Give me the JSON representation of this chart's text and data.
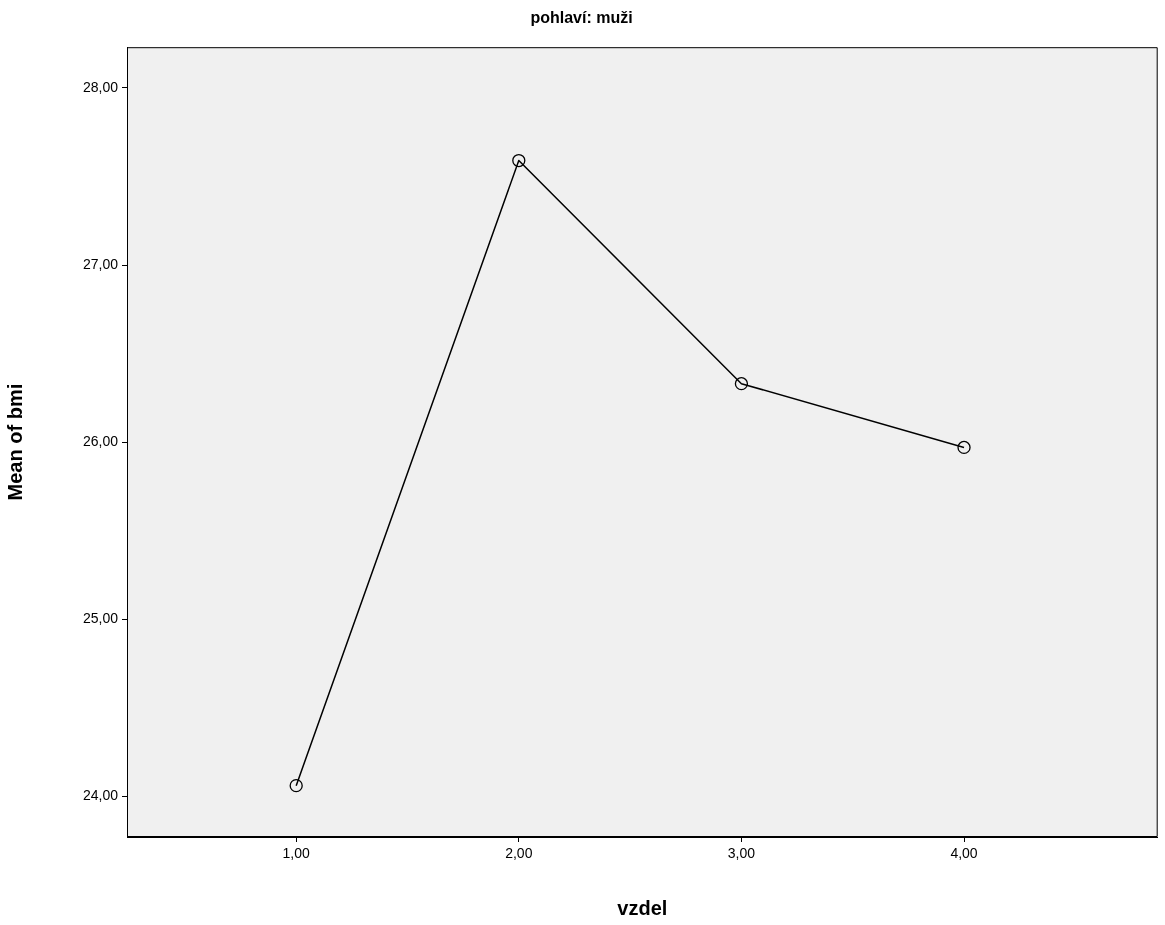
{
  "chart_data": {
    "type": "line",
    "title": "pohlaví: muži",
    "xlabel": "vzdel",
    "ylabel": "Mean of bmi",
    "x": [
      1,
      2,
      3,
      4
    ],
    "series": [
      {
        "color": "#000000",
        "values": [
          24.06,
          27.59,
          26.33,
          25.97
        ]
      }
    ],
    "xlim": [
      0.24,
      4.87
    ],
    "xticks": [
      {
        "value": 1,
        "label": "1,00"
      },
      {
        "value": 2,
        "label": "2,00"
      },
      {
        "value": 3,
        "label": "3,00"
      },
      {
        "value": 4,
        "label": "4,00"
      }
    ],
    "ylim": [
      23.77,
      28.23
    ],
    "yticks": [
      {
        "value": 24,
        "label": "24,00"
      },
      {
        "value": 25,
        "label": "25,00"
      },
      {
        "value": 26,
        "label": "26,00"
      },
      {
        "value": 27,
        "label": "27,00"
      },
      {
        "value": 28,
        "label": "28,00"
      }
    ],
    "marker": "circle",
    "line_style": "solid",
    "grid": false,
    "legend": false
  }
}
